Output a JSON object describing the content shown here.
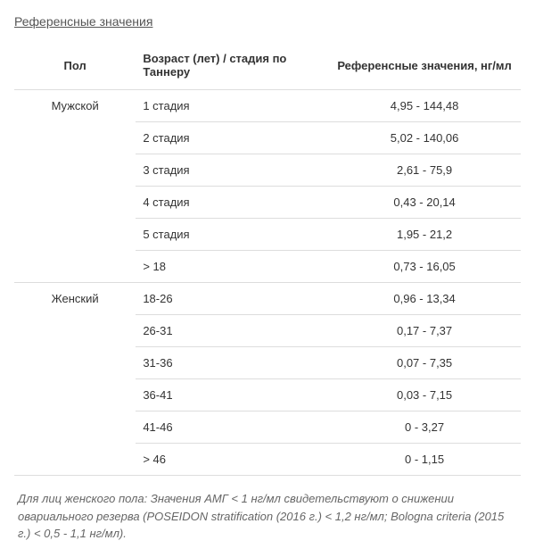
{
  "title": "Референсные значения",
  "table": {
    "columns": [
      "Пол",
      "Возраст (лет) / стадия по Таннеру",
      "Референсные значения, нг/мл"
    ],
    "groups": [
      {
        "sex": "Мужской",
        "rows": [
          {
            "age": "1 стадия",
            "value": "4,95 - 144,48"
          },
          {
            "age": "2 стадия",
            "value": "5,02 - 140,06"
          },
          {
            "age": "3 стадия",
            "value": "2,61 - 75,9"
          },
          {
            "age": "4 стадия",
            "value": "0,43 - 20,14"
          },
          {
            "age": "5 стадия",
            "value": "1,95 - 21,2"
          },
          {
            "age": "> 18",
            "value": "0,73 - 16,05"
          }
        ]
      },
      {
        "sex": "Женский",
        "rows": [
          {
            "age": "18-26",
            "value": "0,96 - 13,34"
          },
          {
            "age": "26-31",
            "value": "0,17 - 7,37"
          },
          {
            "age": "31-36",
            "value": "0,07 - 7,35"
          },
          {
            "age": "36-41",
            "value": "0,03 - 7,15"
          },
          {
            "age": "41-46",
            "value": "0 - 3,27"
          },
          {
            "age": "> 46",
            "value": "0 - 1,15"
          }
        ]
      }
    ]
  },
  "footnote": "Для лиц женского пола: Значения АМГ < 1 нг/мл свидетельствуют о снижении овариального резерва (POSEIDON stratification (2016 г.) < 1,2 нг/мл; Bologna criteria (2015 г.) < 0,5 - 1,1 нг/мл)."
}
